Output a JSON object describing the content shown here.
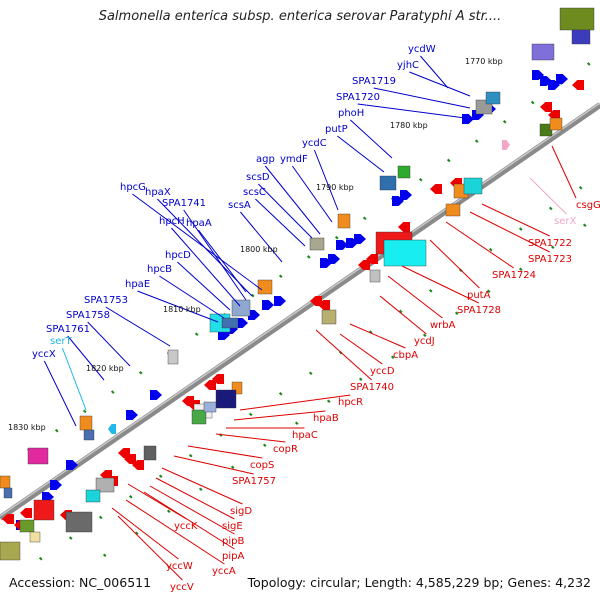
{
  "title": "Salmonella enterica subsp. enterica serovar Paratyphi A str....",
  "footer": {
    "accession": "Accession: NC_006511",
    "summary": "Topology: circular; Length: 4,585,229 bp; Genes: 4,232"
  },
  "colors": {
    "backbone": "#7a7a7a",
    "forward_label": "#0000cc",
    "reverse_label": "#dd0000",
    "trna_forward": "#22b8e8",
    "trna_reverse": "#f2a6c8",
    "tick": "#1a8a1a"
  },
  "kbp_ticks": [
    "1770 kbp",
    "1780 kbp",
    "1790 kbp",
    "1800 kbp",
    "1810 kbp",
    "1820 kbp",
    "1830 kbp"
  ],
  "forward_labels": [
    "ycdW",
    "yjhC",
    "SPA1719",
    "SPA1720",
    "phoH",
    "putP",
    "ycdC",
    "agp",
    "ymdF",
    "scsD",
    "scsC",
    "scsA",
    "hpcG",
    "hpaX",
    "SPA1741",
    "hpcH",
    "hpaA",
    "hpcD",
    "hpcB",
    "hpaE",
    "SPA1753",
    "SPA1758",
    "SPA1761",
    "serT",
    "yccX"
  ],
  "reverse_labels": [
    "csgG",
    "serX",
    "SPA1722",
    "SPA1723",
    "SPA1724",
    "putA",
    "SPA1728",
    "wrbA",
    "ycdJ",
    "cbpA",
    "yccD",
    "SPA1740",
    "hpcR",
    "hpaB",
    "hpaC",
    "copR",
    "copS",
    "SPA1757",
    "sigD",
    "sigE",
    "pipB",
    "pipA",
    "yccA",
    "yccK",
    "yccW",
    "yccV"
  ]
}
